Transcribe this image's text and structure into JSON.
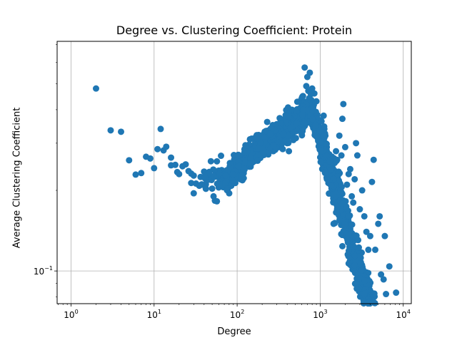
{
  "chart_data": {
    "type": "scatter",
    "title": "Degree vs. Clustering Coefficient: Protein",
    "xlabel": "Degree",
    "ylabel": "Average Clustering Coefficient",
    "xscale": "log",
    "yscale": "log",
    "xlim": [
      0.68,
      12500
    ],
    "ylim": [
      0.0755,
      0.72
    ],
    "grid": true,
    "marker_color": "#1f77b4",
    "x_tick_labels": [
      {
        "value": 1,
        "base": "10",
        "exp": "0"
      },
      {
        "value": 10,
        "base": "10",
        "exp": "1"
      },
      {
        "value": 100,
        "base": "10",
        "exp": "2"
      },
      {
        "value": 1000,
        "base": "10",
        "exp": "3"
      },
      {
        "value": 10000,
        "base": "10",
        "exp": "4"
      }
    ],
    "y_tick_labels": [
      {
        "value": 0.1,
        "base": "10",
        "exp": "−1"
      }
    ],
    "points": [
      [
        2,
        0.48
      ],
      [
        3,
        0.335
      ],
      [
        4,
        0.331
      ],
      [
        5,
        0.259
      ],
      [
        6,
        0.229
      ],
      [
        7,
        0.232
      ],
      [
        8,
        0.267
      ],
      [
        9,
        0.263
      ],
      [
        10,
        0.242
      ],
      [
        11,
        0.285
      ],
      [
        12,
        0.339
      ],
      [
        13,
        0.282
      ],
      [
        14,
        0.291
      ],
      [
        16,
        0.248
      ],
      [
        16,
        0.265
      ],
      [
        18,
        0.249
      ],
      [
        19,
        0.234
      ],
      [
        20,
        0.23
      ],
      [
        22,
        0.246
      ],
      [
        24,
        0.25
      ],
      [
        26,
        0.236
      ],
      [
        28,
        0.231
      ],
      [
        28,
        0.213
      ],
      [
        30,
        0.195
      ],
      [
        30,
        0.227
      ],
      [
        32,
        0.212
      ],
      [
        35,
        0.208
      ],
      [
        38,
        0.21
      ],
      [
        40,
        0.235
      ],
      [
        42,
        0.203
      ],
      [
        45,
        0.219
      ],
      [
        47,
        0.228
      ],
      [
        50,
        0.203
      ],
      [
        52,
        0.19
      ],
      [
        54,
        0.183
      ],
      [
        57,
        0.182
      ],
      [
        55,
        0.225
      ],
      [
        60,
        0.205
      ],
      [
        62,
        0.218
      ],
      [
        65,
        0.226
      ],
      [
        70,
        0.222
      ],
      [
        72,
        0.232
      ],
      [
        75,
        0.226
      ],
      [
        78,
        0.238
      ],
      [
        80,
        0.228
      ],
      [
        85,
        0.208
      ],
      [
        88,
        0.246
      ],
      [
        90,
        0.217
      ],
      [
        95,
        0.213
      ],
      [
        100,
        0.246
      ],
      [
        105,
        0.226
      ],
      [
        110,
        0.232
      ],
      [
        120,
        0.222
      ],
      [
        120,
        0.265
      ],
      [
        130,
        0.252
      ],
      [
        140,
        0.245
      ],
      [
        150,
        0.268
      ],
      [
        160,
        0.28
      ],
      [
        170,
        0.292
      ],
      [
        180,
        0.301
      ],
      [
        190,
        0.288
      ],
      [
        200,
        0.276
      ],
      [
        210,
        0.315
      ],
      [
        220,
        0.305
      ],
      [
        230,
        0.36
      ],
      [
        250,
        0.331
      ],
      [
        260,
        0.294
      ],
      [
        280,
        0.31
      ],
      [
        300,
        0.345
      ],
      [
        320,
        0.29
      ],
      [
        350,
        0.32
      ],
      [
        380,
        0.333
      ],
      [
        400,
        0.3
      ],
      [
        420,
        0.28
      ],
      [
        450,
        0.353
      ],
      [
        480,
        0.372
      ],
      [
        500,
        0.39
      ],
      [
        520,
        0.34
      ],
      [
        550,
        0.36
      ],
      [
        580,
        0.405
      ],
      [
        600,
        0.42
      ],
      [
        620,
        0.45
      ],
      [
        650,
        0.575
      ],
      [
        680,
        0.49
      ],
      [
        700,
        0.53
      ],
      [
        720,
        0.47
      ],
      [
        750,
        0.55
      ],
      [
        780,
        0.435
      ],
      [
        800,
        0.48
      ],
      [
        850,
        0.46
      ],
      [
        900,
        0.43
      ],
      [
        950,
        0.35
      ],
      [
        1000,
        0.33
      ],
      [
        1050,
        0.31
      ],
      [
        1100,
        0.38
      ],
      [
        1150,
        0.3
      ],
      [
        1200,
        0.29
      ],
      [
        1250,
        0.27
      ],
      [
        1300,
        0.25
      ],
      [
        1350,
        0.24
      ],
      [
        1400,
        0.22
      ],
      [
        1450,
        0.15
      ],
      [
        1500,
        0.151
      ],
      [
        1550,
        0.28
      ],
      [
        1600,
        0.26
      ],
      [
        1700,
        0.32
      ],
      [
        1800,
        0.27
      ],
      [
        1850,
        0.37
      ],
      [
        1900,
        0.42
      ],
      [
        2000,
        0.29
      ],
      [
        2100,
        0.21
      ],
      [
        2200,
        0.23
      ],
      [
        2300,
        0.24
      ],
      [
        2400,
        0.19
      ],
      [
        2500,
        0.18
      ],
      [
        2600,
        0.22
      ],
      [
        2700,
        0.3
      ],
      [
        2800,
        0.27
      ],
      [
        3000,
        0.17
      ],
      [
        3200,
        0.2
      ],
      [
        3400,
        0.16
      ],
      [
        3600,
        0.14
      ],
      [
        3800,
        0.12
      ],
      [
        4000,
        0.135
      ],
      [
        4200,
        0.215
      ],
      [
        4400,
        0.26
      ],
      [
        4600,
        0.12
      ],
      [
        5000,
        0.15
      ],
      [
        5200,
        0.16
      ],
      [
        5400,
        0.097
      ],
      [
        5800,
        0.093
      ],
      [
        6000,
        0.135
      ],
      [
        6200,
        0.082
      ],
      [
        6800,
        0.104
      ],
      [
        8200,
        0.083
      ]
    ]
  }
}
